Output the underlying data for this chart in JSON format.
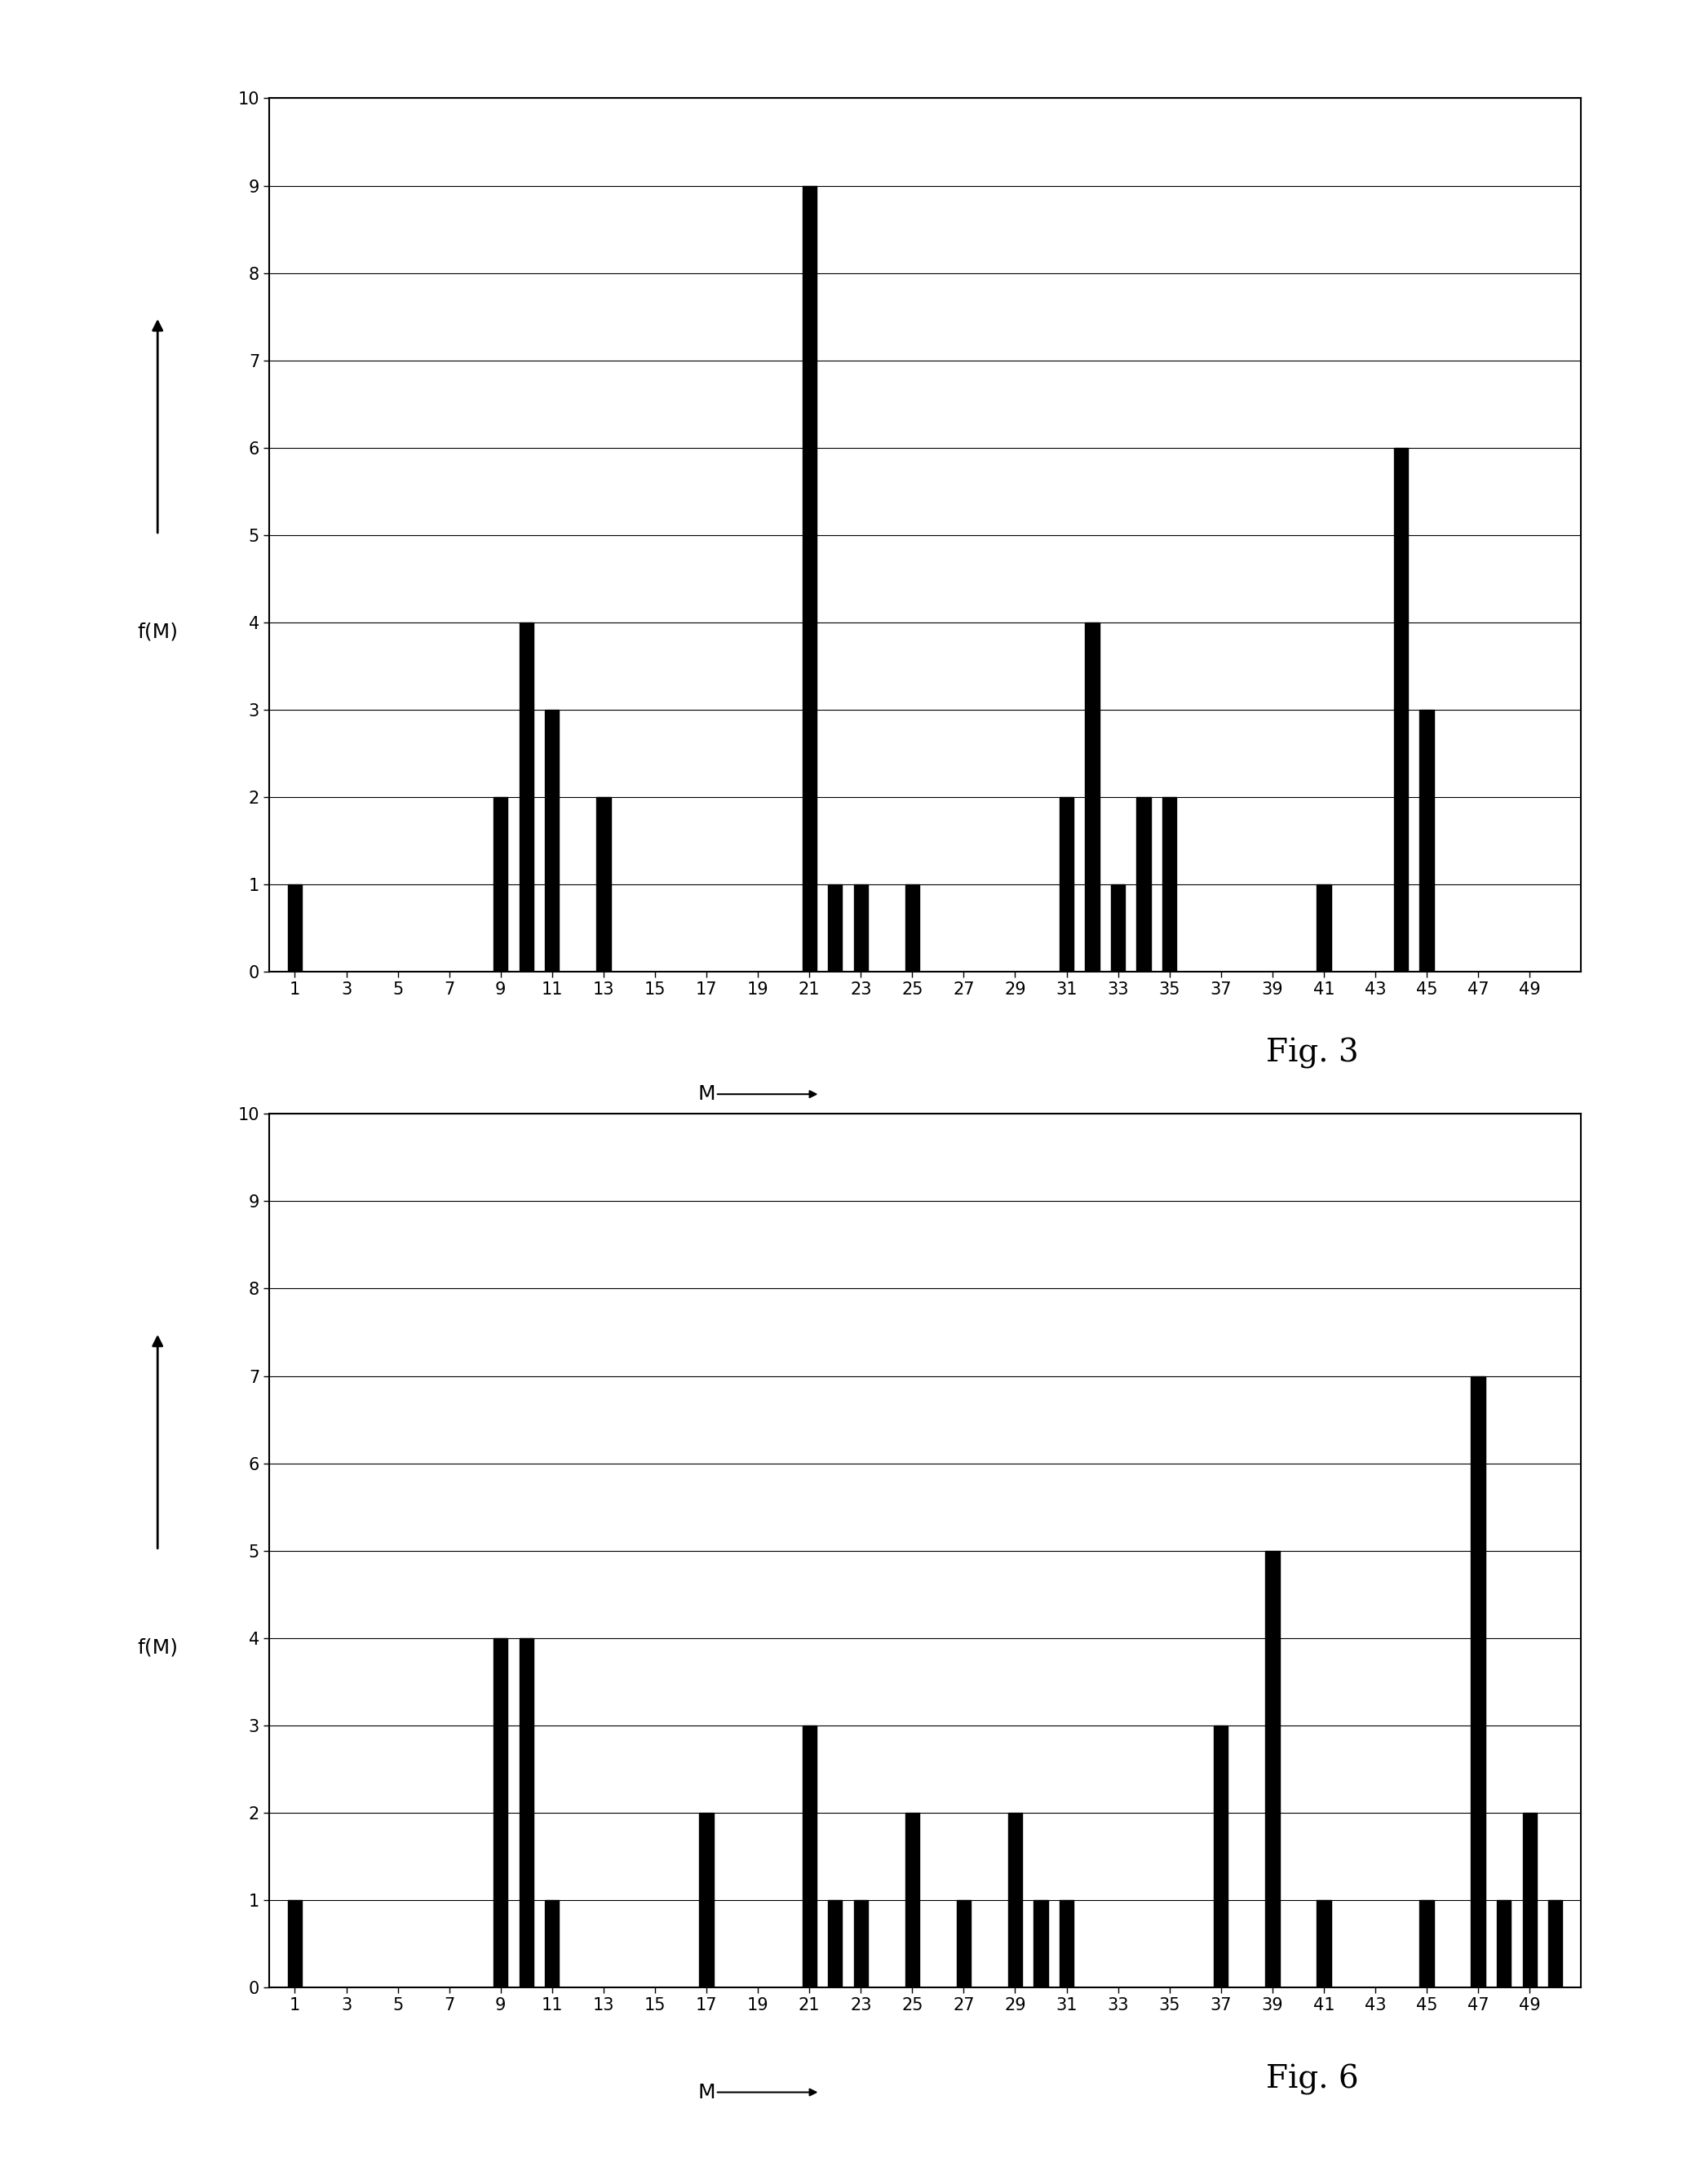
{
  "fig3": {
    "title": "Fig. 3",
    "ylim": [
      0,
      10
    ],
    "yticks": [
      0,
      1,
      2,
      3,
      4,
      5,
      6,
      7,
      8,
      9,
      10
    ],
    "xtick_labels": [
      "1",
      "3",
      "5",
      "7",
      "9",
      "11",
      "13",
      "15",
      "17",
      "19",
      "21",
      "23",
      "25",
      "27",
      "29",
      "31",
      "33",
      "35",
      "37",
      "39",
      "41",
      "43",
      "45",
      "47",
      "49"
    ],
    "xtick_positions": [
      1,
      3,
      5,
      7,
      9,
      11,
      13,
      15,
      17,
      19,
      21,
      23,
      25,
      27,
      29,
      31,
      33,
      35,
      37,
      39,
      41,
      43,
      45,
      47,
      49
    ],
    "xlim": [
      0,
      51
    ],
    "bars": {
      "1": 1,
      "9": 2,
      "10": 4,
      "11": 3,
      "13": 2,
      "21": 9,
      "22": 1,
      "23": 1,
      "25": 1,
      "31": 2,
      "32": 4,
      "33": 1,
      "34": 2,
      "35": 2,
      "41": 1,
      "44": 6,
      "45": 3
    }
  },
  "fig6": {
    "title": "Fig. 6",
    "ylim": [
      0,
      10
    ],
    "yticks": [
      0,
      1,
      2,
      3,
      4,
      5,
      6,
      7,
      8,
      9,
      10
    ],
    "xtick_labels": [
      "1",
      "3",
      "5",
      "7",
      "9",
      "11",
      "13",
      "15",
      "17",
      "19",
      "21",
      "23",
      "25",
      "27",
      "29",
      "31",
      "33",
      "35",
      "37",
      "39",
      "41",
      "43",
      "45",
      "47",
      "49"
    ],
    "xtick_positions": [
      1,
      3,
      5,
      7,
      9,
      11,
      13,
      15,
      17,
      19,
      21,
      23,
      25,
      27,
      29,
      31,
      33,
      35,
      37,
      39,
      41,
      43,
      45,
      47,
      49
    ],
    "xlim": [
      0,
      51
    ],
    "bars": {
      "1": 1,
      "9": 4,
      "10": 4,
      "11": 1,
      "17": 2,
      "21": 3,
      "22": 1,
      "23": 1,
      "25": 2,
      "27": 1,
      "29": 2,
      "30": 1,
      "31": 1,
      "37": 3,
      "39": 5,
      "41": 1,
      "45": 1,
      "47": 7,
      "48": 1,
      "49": 2,
      "50": 1
    }
  },
  "bar_color": "#000000",
  "bar_width": 0.55,
  "background_color": "#ffffff",
  "fig_label_fontsize": 28,
  "axis_label_fontsize": 18,
  "tick_fontsize": 15,
  "ylabel_text": "f(M)",
  "xlabel_text": "M"
}
